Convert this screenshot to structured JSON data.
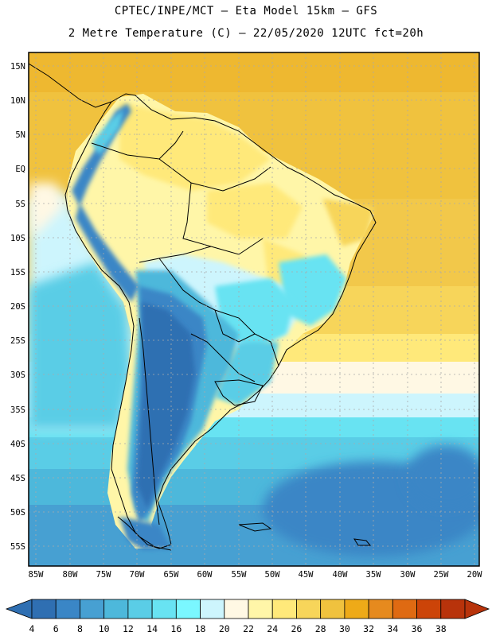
{
  "header": {
    "line1": "CPTEC/INPE/MCT –  Eta Model 15km – GFS",
    "line2": "2 Metre Temperature (C) – 22/05/2020 12UTC fct=20h"
  },
  "map": {
    "lat_ticks": [
      "15N",
      "10N",
      "5N",
      "EQ",
      "5S",
      "10S",
      "15S",
      "20S",
      "25S",
      "30S",
      "35S",
      "40S",
      "45S",
      "50S",
      "55S"
    ],
    "lon_ticks": [
      "85W",
      "80W",
      "75W",
      "70W",
      "65W",
      "60W",
      "55W",
      "50W",
      "45W",
      "40W",
      "35W",
      "30W",
      "25W",
      "20W"
    ]
  },
  "colorbar": {
    "labels": [
      "4",
      "6",
      "8",
      "10",
      "12",
      "14",
      "16",
      "18",
      "20",
      "22",
      "24",
      "26",
      "28",
      "30",
      "32",
      "34",
      "36",
      "38"
    ],
    "colors": [
      "#2f6fb2",
      "#3a86c6",
      "#47a0d2",
      "#4db8db",
      "#5acde6",
      "#68e3f2",
      "#7af7ff",
      "#cdf5fd",
      "#fff8e4",
      "#fff6a8",
      "#ffe97a",
      "#f7d55a",
      "#f0c23e",
      "#eeaa18",
      "#e68a1e",
      "#df6a12",
      "#cc4408",
      "#b8330b"
    ]
  }
}
